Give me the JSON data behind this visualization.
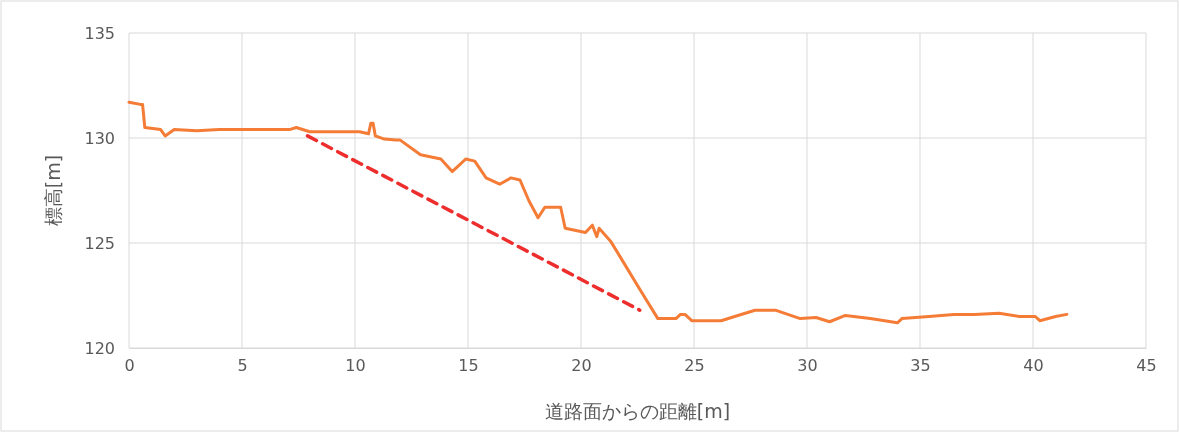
{
  "chart_data": {
    "type": "line",
    "xlabel": "道路面からの距離[m]",
    "ylabel": "標高[m]",
    "xlim": [
      0,
      45
    ],
    "xticks": [
      0,
      5,
      10,
      15,
      20,
      25,
      30,
      35,
      40,
      45
    ],
    "ylim": [
      120,
      135
    ],
    "yticks": [
      120,
      125,
      130,
      135
    ],
    "grid": true,
    "marker": "none",
    "series": [
      {
        "color": "#f47c36",
        "line_style": "solid",
        "x": [
          0,
          0.5,
          0.6,
          0.7,
          1.4,
          1.6,
          2.0,
          3,
          4,
          5,
          6,
          7.1,
          7.4,
          8.0,
          10.2,
          10.6,
          10.7,
          10.8,
          10.9,
          11.3,
          11.8,
          12,
          12.9,
          13.8,
          14.3,
          14.6,
          14.9,
          15.3,
          15.8,
          16.4,
          16.9,
          17.3,
          17.7,
          18.1,
          18.4,
          19.1,
          19.3,
          20.2,
          20.5,
          20.7,
          20.8,
          21.3,
          21.7,
          22.6,
          23.4,
          24.2,
          24.4,
          24.6,
          24.9,
          26.2,
          26.8,
          27.7,
          28.6,
          29.7,
          30.4,
          31.0,
          31.7,
          32.8,
          34.0,
          34.2,
          35.4,
          36.5,
          37.4,
          38.5,
          39.4,
          40.1,
          40.3,
          41.0,
          41.5
        ],
        "values": [
          131.7,
          131.6,
          131.6,
          130.5,
          130.4,
          130.1,
          130.4,
          130.35,
          130.4,
          130.4,
          130.4,
          130.4,
          130.5,
          130.3,
          130.3,
          130.2,
          130.7,
          130.7,
          130.1,
          129.95,
          129.9,
          129.9,
          129.2,
          129.0,
          128.4,
          128.7,
          129.0,
          128.9,
          128.1,
          127.8,
          128.1,
          128.0,
          127.0,
          126.2,
          126.7,
          126.7,
          125.7,
          125.5,
          125.85,
          125.3,
          125.7,
          125.1,
          124.4,
          122.8,
          121.4,
          121.4,
          121.6,
          121.6,
          121.3,
          121.3,
          121.5,
          121.8,
          121.8,
          121.4,
          121.45,
          121.25,
          121.55,
          121.4,
          121.2,
          121.4,
          121.5,
          121.6,
          121.6,
          121.65,
          121.5,
          121.5,
          121.3,
          121.5,
          121.6
        ]
      },
      {
        "color": "#ee2d2d",
        "line_style": "dashed",
        "x": [
          7.9,
          22.6
        ],
        "values": [
          130.1,
          121.8
        ]
      }
    ]
  }
}
